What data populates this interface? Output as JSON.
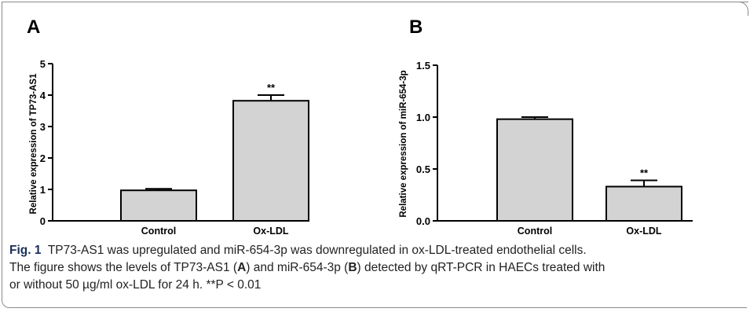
{
  "chart_data": [
    {
      "type": "bar",
      "panel_label": "A",
      "categories": [
        "Control",
        "Ox-LDL"
      ],
      "values": [
        0.97,
        3.82
      ],
      "errors": [
        0.05,
        0.18
      ],
      "significance": [
        "",
        "**"
      ],
      "ylabel": "Relative expression of TP73-AS1",
      "ylim": [
        0,
        5
      ],
      "yticks": [
        "0",
        "1",
        "2",
        "3",
        "4",
        "5"
      ],
      "ytick_values": [
        0,
        1,
        2,
        3,
        4,
        5
      ]
    },
    {
      "type": "bar",
      "panel_label": "B",
      "categories": [
        "Control",
        "Ox-LDL"
      ],
      "values": [
        0.98,
        0.33
      ],
      "errors": [
        0.02,
        0.06
      ],
      "significance": [
        "",
        "**"
      ],
      "ylabel": "Relative expression of miR-654-3p",
      "ylim": [
        0,
        1.5
      ],
      "yticks": [
        "0.0",
        "0.5",
        "1.0",
        "1.5"
      ],
      "ytick_values": [
        0,
        0.5,
        1.0,
        1.5
      ]
    }
  ],
  "caption": {
    "fig_label": "Fig. 1",
    "line1": "TP73-AS1 was upregulated and miR-654-3p was downregulated in ox-LDL-treated endothelial cells.",
    "line2a": "The figure shows the levels of TP73-AS1 (",
    "line2A": "A",
    "line2b": ") and miR-654-3p (",
    "line2B": "B",
    "line2c": ") detected by qRT-PCR in HAECs treated with",
    "line3": "or without 50 µg/ml ox-LDL for 24 h. **P < 0.01"
  },
  "colors": {
    "bar_fill": "#d3d3d3",
    "axis": "#000000",
    "fig_label": "#1a2e5a"
  }
}
